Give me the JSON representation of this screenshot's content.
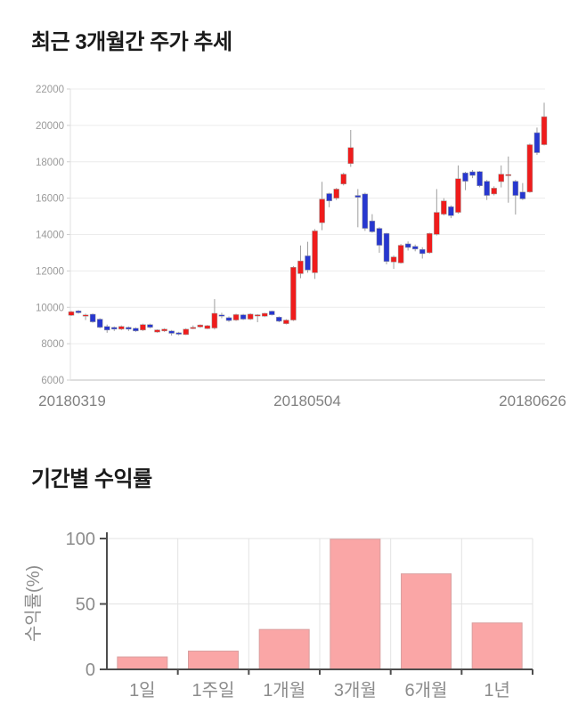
{
  "page": {
    "title1": "최근 3개월간 주가 추세",
    "title2": "기간별 수익률"
  },
  "chart_data": [
    {
      "type": "candlestick",
      "title": "최근 3개월간 주가 추세",
      "x_ticks": [
        "20180319",
        "20180504",
        "20180626"
      ],
      "y_ticks": [
        6000,
        8000,
        10000,
        12000,
        14000,
        16000,
        18000,
        20000,
        22000
      ],
      "ylim": [
        6000,
        22000
      ],
      "grid": true,
      "up_color": "#ef1c1c",
      "down_color": "#2737cf",
      "wick_color": "#9e9e9e",
      "ohlc_note": "[open, high, low, close] per trading day, 2018-03-19 to 2018-06-26",
      "ohlc": [
        [
          9560,
          9800,
          9520,
          9760
        ],
        [
          9800,
          9850,
          9650,
          9700
        ],
        [
          9530,
          9650,
          9300,
          9580
        ],
        [
          9620,
          9660,
          9150,
          9200
        ],
        [
          9350,
          9400,
          8850,
          8900
        ],
        [
          8950,
          9050,
          8600,
          8750
        ],
        [
          8900,
          8950,
          8700,
          8800
        ],
        [
          8800,
          9000,
          8750,
          8950
        ],
        [
          8900,
          8950,
          8700,
          8800
        ],
        [
          8850,
          8900,
          8650,
          8700
        ],
        [
          8750,
          9100,
          8700,
          9050
        ],
        [
          9050,
          9100,
          8850,
          8900
        ],
        [
          8640,
          8790,
          8600,
          8760
        ],
        [
          8700,
          8850,
          8650,
          8800
        ],
        [
          8700,
          8750,
          8450,
          8570
        ],
        [
          8600,
          8650,
          8460,
          8520
        ],
        [
          8500,
          8850,
          8480,
          8800
        ],
        [
          8870,
          9000,
          8800,
          8900
        ],
        [
          8920,
          9060,
          8870,
          9030
        ],
        [
          8830,
          9030,
          8800,
          8990
        ],
        [
          8860,
          10450,
          8780,
          9670
        ],
        [
          9580,
          9700,
          9400,
          9540
        ],
        [
          9430,
          9500,
          9200,
          9270
        ],
        [
          9300,
          9650,
          9250,
          9600
        ],
        [
          9590,
          9640,
          9300,
          9350
        ],
        [
          9350,
          9670,
          9300,
          9625
        ],
        [
          9590,
          9630,
          9180,
          9590
        ],
        [
          9510,
          9700,
          9460,
          9670
        ],
        [
          9790,
          9820,
          9550,
          9590
        ],
        [
          9460,
          9500,
          9180,
          9235
        ],
        [
          9100,
          9350,
          9060,
          9300
        ],
        [
          9300,
          12270,
          9250,
          12200
        ],
        [
          11850,
          13400,
          11600,
          12550
        ],
        [
          12830,
          13600,
          11900,
          12050
        ],
        [
          11900,
          14300,
          11560,
          14200
        ],
        [
          14650,
          16900,
          14240,
          15950
        ],
        [
          16250,
          16300,
          15500,
          15850
        ],
        [
          16000,
          16560,
          15900,
          16500
        ],
        [
          16780,
          17400,
          16700,
          17320
        ],
        [
          17900,
          19750,
          17720,
          18780
        ],
        [
          16150,
          16500,
          14400,
          16050
        ],
        [
          16230,
          16300,
          14200,
          14340
        ],
        [
          14750,
          15120,
          14100,
          14150
        ],
        [
          14340,
          14400,
          13000,
          13410
        ],
        [
          14060,
          14100,
          12360,
          12520
        ],
        [
          12490,
          12850,
          12110,
          12770
        ],
        [
          12440,
          13480,
          12400,
          13410
        ],
        [
          13490,
          13620,
          13120,
          13290
        ],
        [
          13350,
          13450,
          13080,
          13200
        ],
        [
          13180,
          13300,
          12680,
          12950
        ],
        [
          13000,
          14100,
          12950,
          14060
        ],
        [
          14010,
          16500,
          13950,
          15220
        ],
        [
          15120,
          16000,
          15050,
          15850
        ],
        [
          15530,
          15600,
          14900,
          15040
        ],
        [
          15220,
          17800,
          15150,
          17070
        ],
        [
          17390,
          17450,
          16440,
          16930
        ],
        [
          17450,
          17550,
          17100,
          17250
        ],
        [
          17460,
          17500,
          16600,
          16680
        ],
        [
          16930,
          17000,
          15900,
          16150
        ],
        [
          16230,
          16650,
          16150,
          16550
        ],
        [
          16910,
          17800,
          16590,
          17320
        ],
        [
          17250,
          18290,
          15750,
          17300
        ],
        [
          16930,
          17000,
          15100,
          16150
        ],
        [
          16340,
          16830,
          15900,
          15960
        ],
        [
          16340,
          19000,
          16300,
          18940
        ],
        [
          19600,
          19880,
          18380,
          18500
        ],
        [
          18940,
          21250,
          18900,
          20480
        ]
      ]
    },
    {
      "type": "bar",
      "title": "기간별 수익률",
      "categories": [
        "1일",
        "1주일",
        "1개월",
        "3개월",
        "6개월",
        "1년"
      ],
      "values": [
        9.5,
        14,
        30.5,
        99.5,
        73,
        35.5
      ],
      "ylabel": "수익률(%)",
      "y_ticks": [
        0,
        50,
        100
      ],
      "ylim": [
        0,
        100
      ],
      "grid": true,
      "legend": "none",
      "bar_color": "#faa6a6",
      "bar_border_color": "#d9a0a0",
      "axis_color": "#4d4d4d"
    }
  ]
}
